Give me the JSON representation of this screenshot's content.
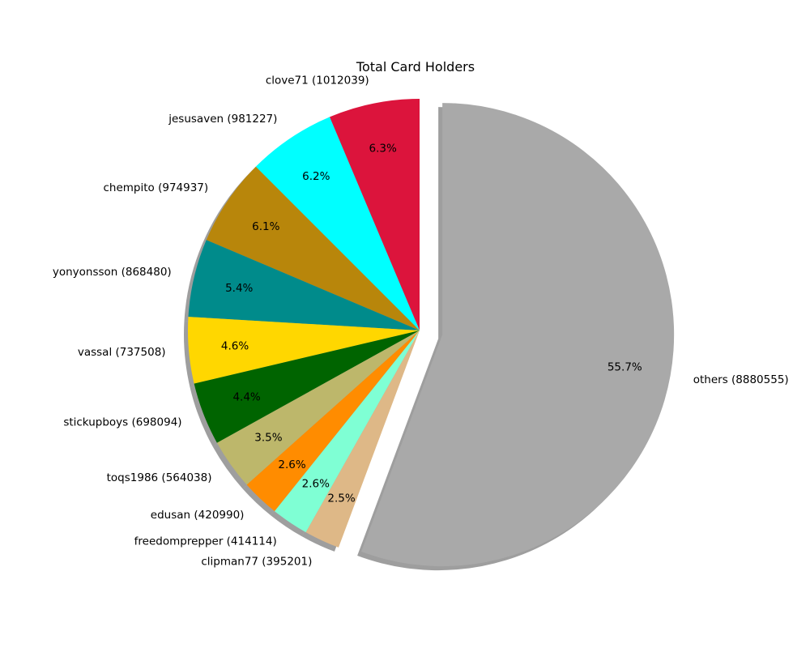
{
  "chart_data": {
    "type": "pie",
    "title": "Total Card Holders",
    "start_angle_deg": 90,
    "direction": "counterclockwise",
    "shadow": true,
    "slices": [
      {
        "label": "clove71 (1012039)",
        "value": 1012039,
        "percent": "6.3%",
        "color": "#dc143c",
        "explode": 0
      },
      {
        "label": "jesusaven (981227)",
        "value": 981227,
        "percent": "6.2%",
        "color": "#00ffff",
        "explode": 0
      },
      {
        "label": "chempito (974937)",
        "value": 974937,
        "percent": "6.1%",
        "color": "#b8860b",
        "explode": 0
      },
      {
        "label": "yonyonsson (868480)",
        "value": 868480,
        "percent": "5.4%",
        "color": "#008b8b",
        "explode": 0
      },
      {
        "label": "vassal (737508)",
        "value": 737508,
        "percent": "4.6%",
        "color": "#ffd700",
        "explode": 0
      },
      {
        "label": "stickupboys (698094)",
        "value": 698094,
        "percent": "4.4%",
        "color": "#006400",
        "explode": 0
      },
      {
        "label": "toqs1986 (564038)",
        "value": 564038,
        "percent": "3.5%",
        "color": "#bdb76b",
        "explode": 0
      },
      {
        "label": "edusan (420990)",
        "value": 420990,
        "percent": "2.6%",
        "color": "#ff8c00",
        "explode": 0
      },
      {
        "label": "freedomprepper (414114)",
        "value": 414114,
        "percent": "2.6%",
        "color": "#7fffd4",
        "explode": 0
      },
      {
        "label": "clipman77 (395201)",
        "value": 395201,
        "percent": "2.5%",
        "color": "#deb887",
        "explode": 0
      },
      {
        "label": "others (8880555)",
        "value": 8880555,
        "percent": "55.7%",
        "color": "#a9a9a9",
        "explode": 0.1
      }
    ]
  }
}
